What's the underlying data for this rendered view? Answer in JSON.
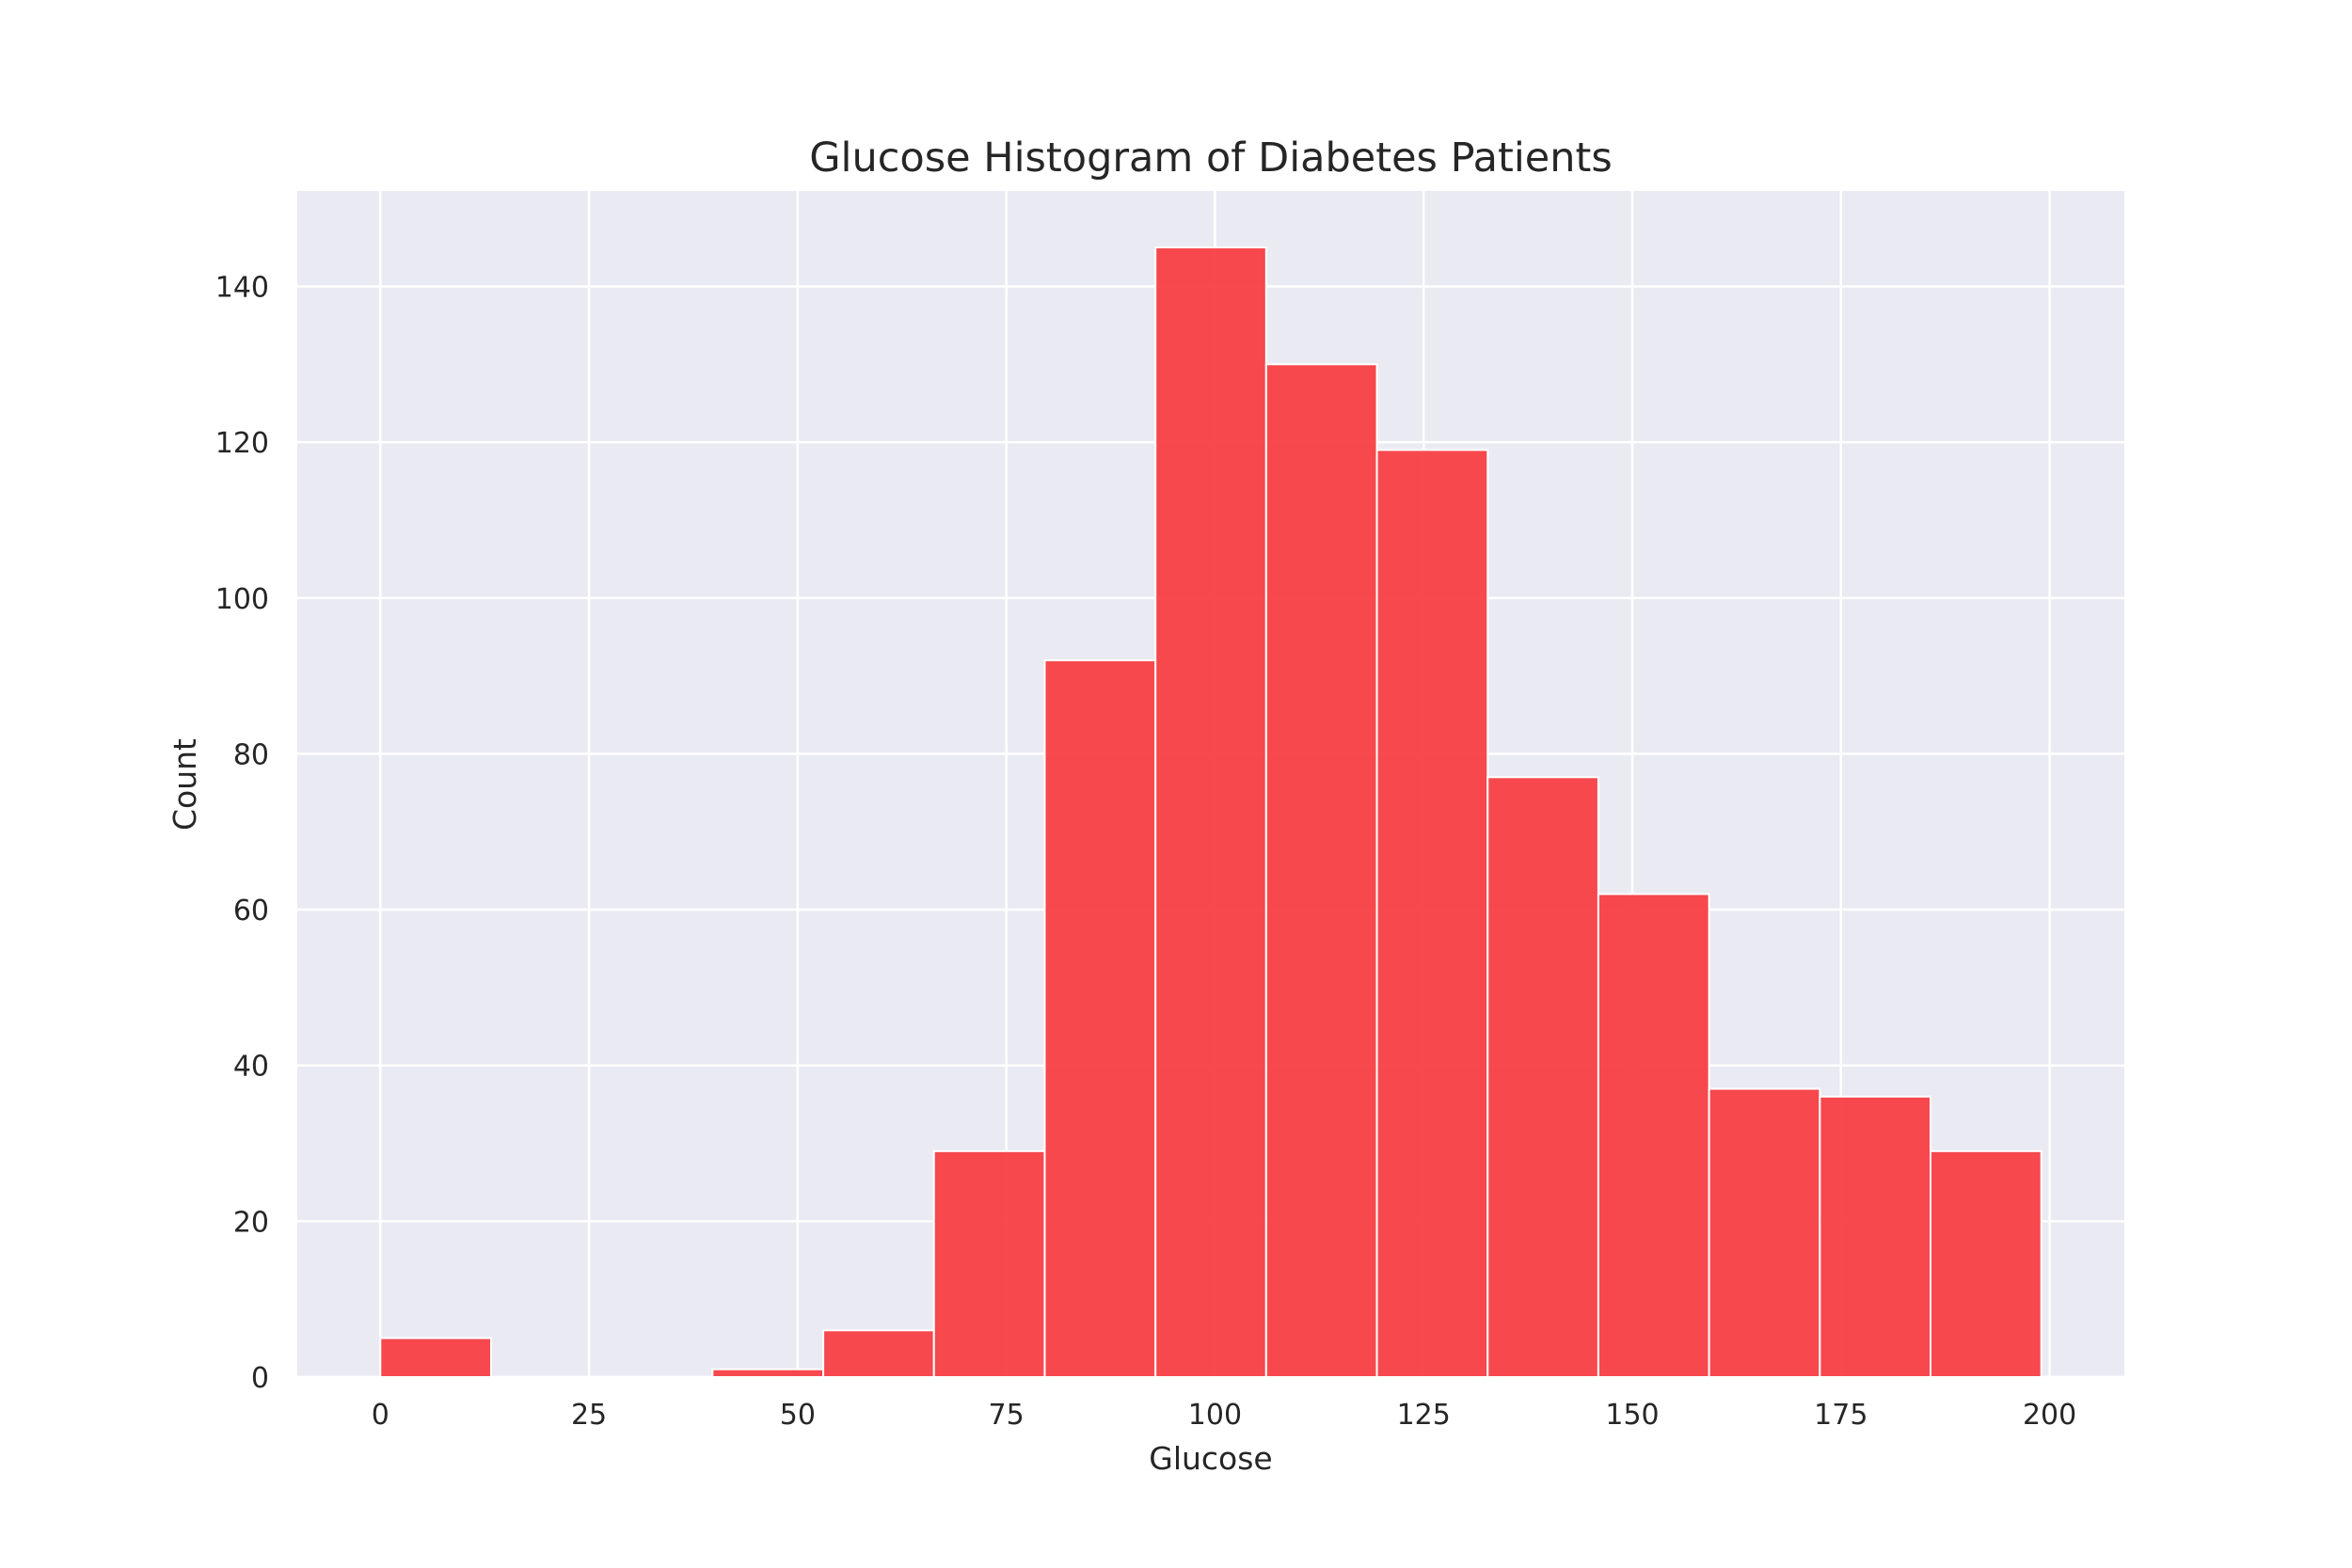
{
  "chart_data": {
    "type": "bar",
    "title": "Glucose Histogram of Diabetes Patients",
    "xlabel": "Glucose",
    "ylabel": "Count",
    "xlim": [
      -9.95,
      208.95
    ],
    "ylim": [
      0,
      152.25
    ],
    "x_ticks": [
      0,
      25,
      50,
      75,
      100,
      125,
      150,
      175,
      200
    ],
    "y_ticks": [
      0,
      20,
      40,
      60,
      80,
      100,
      120,
      140
    ],
    "grid": true,
    "colors": {
      "bar": "#f63a3f",
      "background": "#eaeaf2",
      "grid": "#ffffff",
      "text": "#262626"
    },
    "bins": [
      {
        "start": 0.0,
        "end": 13.27,
        "count": 5
      },
      {
        "start": 13.27,
        "end": 26.53,
        "count": 0
      },
      {
        "start": 26.53,
        "end": 39.8,
        "count": 0
      },
      {
        "start": 39.8,
        "end": 53.07,
        "count": 1
      },
      {
        "start": 53.07,
        "end": 66.33,
        "count": 6
      },
      {
        "start": 66.33,
        "end": 79.6,
        "count": 29
      },
      {
        "start": 79.6,
        "end": 92.87,
        "count": 92
      },
      {
        "start": 92.87,
        "end": 106.13,
        "count": 145
      },
      {
        "start": 106.13,
        "end": 119.4,
        "count": 130
      },
      {
        "start": 119.4,
        "end": 132.67,
        "count": 119
      },
      {
        "start": 132.67,
        "end": 145.93,
        "count": 77
      },
      {
        "start": 145.93,
        "end": 159.2,
        "count": 62
      },
      {
        "start": 159.2,
        "end": 172.47,
        "count": 37
      },
      {
        "start": 172.47,
        "end": 185.73,
        "count": 36
      },
      {
        "start": 185.73,
        "end": 199.0,
        "count": 29
      }
    ]
  }
}
